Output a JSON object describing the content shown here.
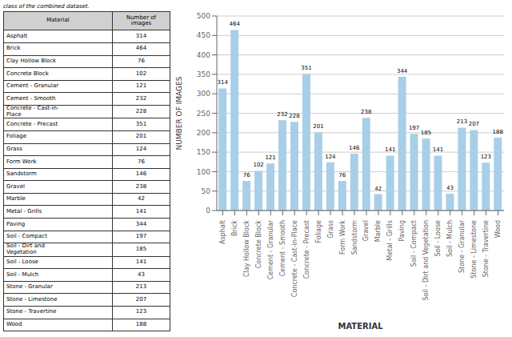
{
  "chart_data": [
    {
      "type": "table",
      "title": "class of the combined dataset.",
      "columns": [
        "Material",
        "Number of\nimages"
      ],
      "categories": [
        "Asphalt",
        "Brick",
        "Clay Hollow Block",
        "Concrete Block",
        "Cement - Granular",
        "Cement - Smooth",
        "Concrete - Cast-in-\nPlace",
        "Concrete - Precast",
        "Foliage",
        "Grass",
        "Form Work",
        "Sandstorm",
        "Gravel",
        "Marble",
        "Metal - Grills",
        "Paving",
        "Soil - Compact",
        "Soil - Dirt and\nVegetation",
        "Soil - Loose",
        "Soil - Mulch",
        "Stone - Granular",
        "Stone - Limestone",
        "Stone - Travertine",
        "Wood"
      ],
      "values": [
        314,
        464,
        76,
        102,
        121,
        232,
        228,
        351,
        201,
        124,
        76,
        146,
        238,
        42,
        141,
        344,
        197,
        185,
        141,
        43,
        213,
        207,
        123,
        188
      ]
    },
    {
      "type": "bar",
      "xlabel": "MATERIAL",
      "ylabel": "NUMBER OF IMAGES",
      "categories": [
        "Asphalt",
        "Brick",
        "Clay Hollow Block",
        "Concrete Block",
        "Cement - Granular",
        "Cement - Smooth",
        "Concrete - Cast-in-Place",
        "Concrete - Precast",
        "Foliage",
        "Grass",
        "Form Work",
        "Sandstorm",
        "Gravel",
        "Marble",
        "Metal - Grills",
        "Paving",
        "Soil - Compact",
        "Soil - Dirt and Vegetation",
        "Soil - Loose",
        "Soil - Mulch",
        "Stone - Granular",
        "Stone - Limestone",
        "Stone - Travertine",
        "Wood"
      ],
      "values": [
        314,
        464,
        76,
        102,
        121,
        232,
        228,
        351,
        201,
        124,
        76,
        146,
        238,
        42,
        141,
        344,
        197,
        185,
        141,
        43,
        213,
        207,
        123,
        188
      ],
      "color": "#a8cfe8",
      "ylim": [
        0,
        500
      ],
      "yticks": [
        0,
        50,
        100,
        150,
        200,
        250,
        300,
        350,
        400,
        450,
        500
      ],
      "grid": true,
      "data_labels": true
    }
  ]
}
